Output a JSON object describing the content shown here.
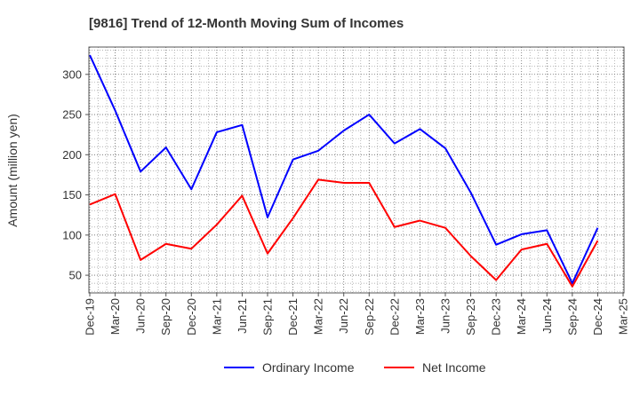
{
  "chart_data": {
    "type": "line",
    "title": "[9816]  Trend of 12-Month Moving Sum of Incomes",
    "xlabel": "",
    "ylabel": "Amount (million yen)",
    "ylim": [
      28,
      334
    ],
    "yticks": [
      50,
      100,
      150,
      200,
      250,
      300
    ],
    "grid": true,
    "legend": "bottom-center",
    "categories": [
      "Dec-19",
      "Mar-20",
      "Jun-20",
      "Sep-20",
      "Dec-20",
      "Mar-21",
      "Jun-21",
      "Sep-21",
      "Dec-21",
      "Mar-22",
      "Jun-22",
      "Sep-22",
      "Dec-22",
      "Mar-23",
      "Jun-23",
      "Sep-23",
      "Dec-23",
      "Mar-24",
      "Jun-24",
      "Sep-24",
      "Dec-24",
      "Mar-25"
    ],
    "series": [
      {
        "name": "Ordinary Income",
        "color": "#0000ff",
        "values": [
          324,
          255,
          179,
          209,
          157,
          228,
          237,
          122,
          194,
          205,
          230,
          250,
          214,
          232,
          208,
          153,
          88,
          101,
          106,
          40,
          109,
          null
        ]
      },
      {
        "name": "Net Income",
        "color": "#ff0000",
        "values": [
          138,
          151,
          69,
          89,
          83,
          113,
          149,
          77,
          121,
          169,
          165,
          165,
          110,
          118,
          109,
          74,
          44,
          82,
          89,
          36,
          93,
          null
        ]
      }
    ]
  }
}
